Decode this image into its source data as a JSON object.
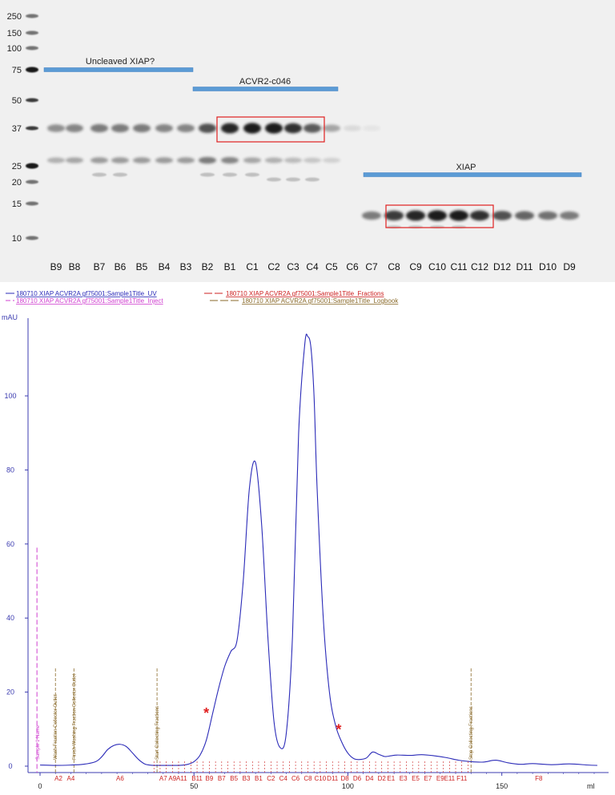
{
  "gel": {
    "marker_labels": [
      "250",
      "150",
      "100",
      "75",
      "50",
      "37",
      "25",
      "20",
      "15",
      "10"
    ],
    "lane_labels": [
      "B9",
      "B8",
      "B7",
      "B6",
      "B5",
      "B4",
      "B3",
      "B2",
      "B1",
      "C1",
      "C2",
      "C3",
      "C4",
      "C5",
      "C6",
      "C7",
      "C8",
      "C9",
      "C10",
      "C11",
      "C12",
      "D12",
      "D11",
      "D10",
      "D9"
    ],
    "annotations": [
      "Uncleaved XIAP?",
      "ACVR2-c046",
      "XIAP"
    ],
    "colors": {
      "annotation_bar": "#5b9bd5",
      "highlight_box": "#e02020",
      "background": "#f2f2f2",
      "band": "#1a1a1a"
    },
    "band_intensity": {
      "note_lanes": "per lane, 0-1 darkness, same order as lane_labels",
      "band_37": [
        0.45,
        0.5,
        0.55,
        0.55,
        0.55,
        0.5,
        0.5,
        0.75,
        0.95,
        1.0,
        1.0,
        0.9,
        0.7,
        0.35,
        0.1,
        0.05,
        0.0,
        0.0,
        0.0,
        0.0,
        0.0,
        0.0,
        0.0,
        0.0,
        0.0
      ],
      "band_27": [
        0.3,
        0.35,
        0.4,
        0.4,
        0.4,
        0.4,
        0.4,
        0.55,
        0.5,
        0.35,
        0.3,
        0.25,
        0.2,
        0.15,
        0.0,
        0.0,
        0.0,
        0.0,
        0.0,
        0.0,
        0.0,
        0.0,
        0.0,
        0.0,
        0.0
      ],
      "band_13": [
        0.0,
        0.0,
        0.0,
        0.0,
        0.0,
        0.0,
        0.0,
        0.0,
        0.0,
        0.0,
        0.0,
        0.0,
        0.0,
        0.0,
        0.0,
        0.55,
        0.85,
        0.95,
        1.0,
        1.0,
        0.9,
        0.75,
        0.65,
        0.6,
        0.55
      ]
    }
  },
  "chart_data": {
    "type": "line",
    "legend": [
      "180710 XIAP ACVR2A gf75001:Sample1Title_UV",
      "180710 XIAP ACVR2A gf75001:Sample1Title_Inject",
      "180710 XIAP ACVR2A gf75001:Sample1Title_Fractions",
      "180710 XIAP ACVR2A gf75001:Sample1Title_Logbook"
    ],
    "legend_colors": [
      "#2b2bb8",
      "#d040d0",
      "#cc2020",
      "#8a6a2a"
    ],
    "ylabel": "mAU",
    "xlabel": "ml",
    "xlim": [
      -3,
      182
    ],
    "ylim": [
      -3,
      122
    ],
    "xticks": [
      0,
      50,
      100,
      150
    ],
    "yticks": [
      0,
      20,
      40,
      60,
      80,
      100
    ],
    "series": [
      {
        "x": [
          0,
          5,
          10,
          14,
          18,
          20,
          22,
          24,
          26,
          28,
          30,
          32,
          34,
          36,
          38,
          40,
          42,
          44,
          46,
          48,
          50,
          52,
          54,
          56,
          58,
          60,
          62,
          64,
          66,
          68,
          70,
          72,
          74,
          76,
          78,
          80,
          82,
          84,
          86,
          87,
          88,
          89,
          90,
          92,
          94,
          96,
          98,
          100,
          102,
          104,
          106,
          108,
          110,
          112,
          114,
          116,
          120,
          124,
          128,
          132,
          136,
          140,
          144,
          148,
          152,
          156,
          160,
          166,
          172,
          178,
          181
        ],
        "y": [
          0.3,
          0.2,
          0.3,
          0.5,
          1.2,
          2.5,
          4.5,
          5.6,
          5.9,
          5.3,
          3.6,
          1.8,
          0.6,
          0.25,
          0.2,
          0.2,
          0.2,
          0.2,
          0.25,
          0.5,
          1.2,
          3,
          7,
          14,
          21,
          27,
          31,
          34,
          50,
          75,
          82,
          65,
          35,
          12,
          5,
          9,
          35,
          90,
          114,
          116,
          113,
          100,
          75,
          40,
          20,
          11,
          6.5,
          3.5,
          2,
          1.8,
          2.2,
          3.8,
          3.2,
          2.6,
          2.8,
          3,
          2.9,
          3.1,
          2.8,
          2.3,
          1.6,
          1.2,
          1.1,
          1.6,
          0.9,
          0.5,
          0.7,
          0.4,
          0.6,
          0.3,
          0.2
        ],
        "color": "#2b2bb8"
      }
    ],
    "inject_marker": {
      "x": -1,
      "y_top": 59,
      "label": "Sample 1 Name"
    },
    "log_markers": [
      {
        "x": 5,
        "label": "Wash Fraction Collector Outlet"
      },
      {
        "x": 11,
        "label": "Finish Washing Fraction Collector Outlet"
      },
      {
        "x": 38,
        "label": "Start Collecting Fractions"
      },
      {
        "x": 140,
        "label": "Stop Collecting Fractions"
      }
    ],
    "fraction_labels": [
      {
        "x": 6,
        "label": "A2"
      },
      {
        "x": 10,
        "label": "A4"
      },
      {
        "x": 26,
        "label": "A6"
      },
      {
        "x": 40,
        "label": "A7"
      },
      {
        "x": 43,
        "label": "A9"
      },
      {
        "x": 46,
        "label": "A11"
      },
      {
        "x": 51,
        "label": "B11"
      },
      {
        "x": 55,
        "label": "B9"
      },
      {
        "x": 59,
        "label": "B7"
      },
      {
        "x": 63,
        "label": "B5"
      },
      {
        "x": 67,
        "label": "B3"
      },
      {
        "x": 71,
        "label": "B1"
      },
      {
        "x": 75,
        "label": "C2"
      },
      {
        "x": 79,
        "label": "C4"
      },
      {
        "x": 83,
        "label": "C6"
      },
      {
        "x": 87,
        "label": "C8"
      },
      {
        "x": 91,
        "label": "C10"
      },
      {
        "x": 95,
        "label": "D11"
      },
      {
        "x": 99,
        "label": "D8"
      },
      {
        "x": 103,
        "label": "D6"
      },
      {
        "x": 107,
        "label": "D4"
      },
      {
        "x": 111,
        "label": "D2"
      },
      {
        "x": 114,
        "label": "E1"
      },
      {
        "x": 118,
        "label": "E3"
      },
      {
        "x": 122,
        "label": "E5"
      },
      {
        "x": 126,
        "label": "E7"
      },
      {
        "x": 130,
        "label": "E9"
      },
      {
        "x": 133,
        "label": "E11"
      },
      {
        "x": 137,
        "label": "F11"
      },
      {
        "x": 162,
        "label": "F8"
      }
    ],
    "stars": [
      {
        "x": 54,
        "y": 13
      },
      {
        "x": 97,
        "y": 8.5
      }
    ],
    "star_glyph": "*",
    "star_color": "#e02020"
  }
}
